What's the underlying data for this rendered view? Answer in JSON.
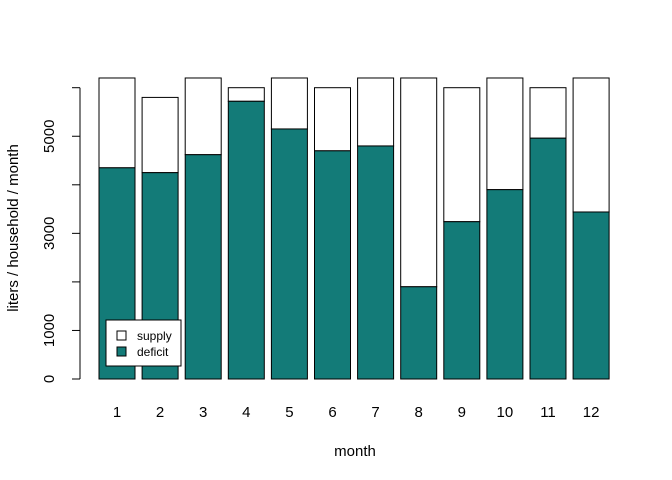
{
  "chart_data": {
    "type": "bar",
    "stacked": true,
    "title": "",
    "xlabel": "month",
    "ylabel": "liters / household / month",
    "categories": [
      "1",
      "2",
      "3",
      "4",
      "5",
      "6",
      "7",
      "8",
      "9",
      "10",
      "11",
      "12"
    ],
    "totals": [
      6200,
      5800,
      6200,
      6000,
      6200,
      6000,
      6200,
      6200,
      6000,
      6200,
      6000,
      6200
    ],
    "series": [
      {
        "name": "deficit",
        "color": "#137b78",
        "values": [
          4350,
          4250,
          4620,
          5720,
          5150,
          4700,
          4800,
          1900,
          3240,
          3900,
          4960,
          3440
        ]
      },
      {
        "name": "supply",
        "color": "#ffffff",
        "values": [
          1850,
          1550,
          1580,
          280,
          1050,
          1300,
          1400,
          4300,
          2760,
          2300,
          1040,
          2760
        ]
      }
    ],
    "yticks": [
      0,
      1000,
      3000,
      5000
    ],
    "ylim": [
      0,
      6200
    ],
    "grid": false,
    "legend_position": "bottom-left"
  }
}
